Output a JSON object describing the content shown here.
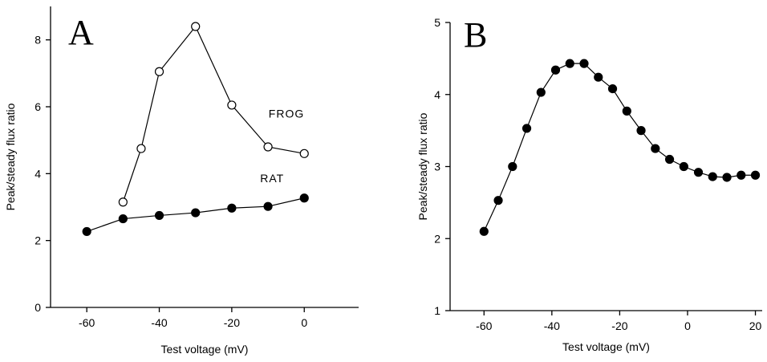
{
  "chart_data": [
    {
      "type": "line",
      "panel_label": "A",
      "x_label": "Test voltage (mV)",
      "y_label": "Peak/steady flux ratio",
      "xlim": [
        -70,
        15
      ],
      "ylim": [
        0,
        9
      ],
      "xticks": [
        -60,
        -40,
        -20,
        0
      ],
      "yticks": [
        0,
        2,
        4,
        6,
        8
      ],
      "series": [
        {
          "name": "FROG",
          "color": "#000000",
          "marker": "open",
          "x": [
            -50,
            -45,
            -40,
            -30,
            -20,
            -10,
            0
          ],
          "values": [
            3.15,
            4.75,
            7.05,
            8.4,
            6.05,
            4.8,
            4.6
          ]
        },
        {
          "name": "RAT",
          "color": "#000000",
          "marker": "filled",
          "x": [
            -60,
            -50,
            -40,
            -30,
            -20,
            -10,
            0
          ],
          "values": [
            2.27,
            2.65,
            2.75,
            2.83,
            2.97,
            3.02,
            3.27
          ]
        }
      ]
    },
    {
      "type": "line",
      "panel_label": "B",
      "x_label": "Test voltage (mV)",
      "y_label": "Peak/steady flux ratio",
      "xlim": [
        -70,
        22
      ],
      "ylim": [
        1,
        5
      ],
      "xticks": [
        -60,
        -40,
        -20,
        0,
        20
      ],
      "yticks": [
        1,
        2,
        3,
        4,
        5
      ],
      "series": [
        {
          "color": "#000000",
          "marker": "filled",
          "x": [
            -60,
            -55.8,
            -51.6,
            -47.4,
            -43.2,
            -38.9,
            -34.7,
            -30.5,
            -26.3,
            -22.1,
            -17.9,
            -13.7,
            -9.5,
            -5.3,
            -1.1,
            3.2,
            7.4,
            11.6,
            15.8,
            20
          ],
          "values": [
            2.1,
            2.53,
            3.0,
            3.53,
            4.03,
            4.34,
            4.43,
            4.43,
            4.24,
            4.08,
            3.77,
            3.5,
            3.25,
            3.1,
            3.0,
            2.92,
            2.86,
            2.85,
            2.88,
            2.88
          ]
        }
      ]
    }
  ]
}
